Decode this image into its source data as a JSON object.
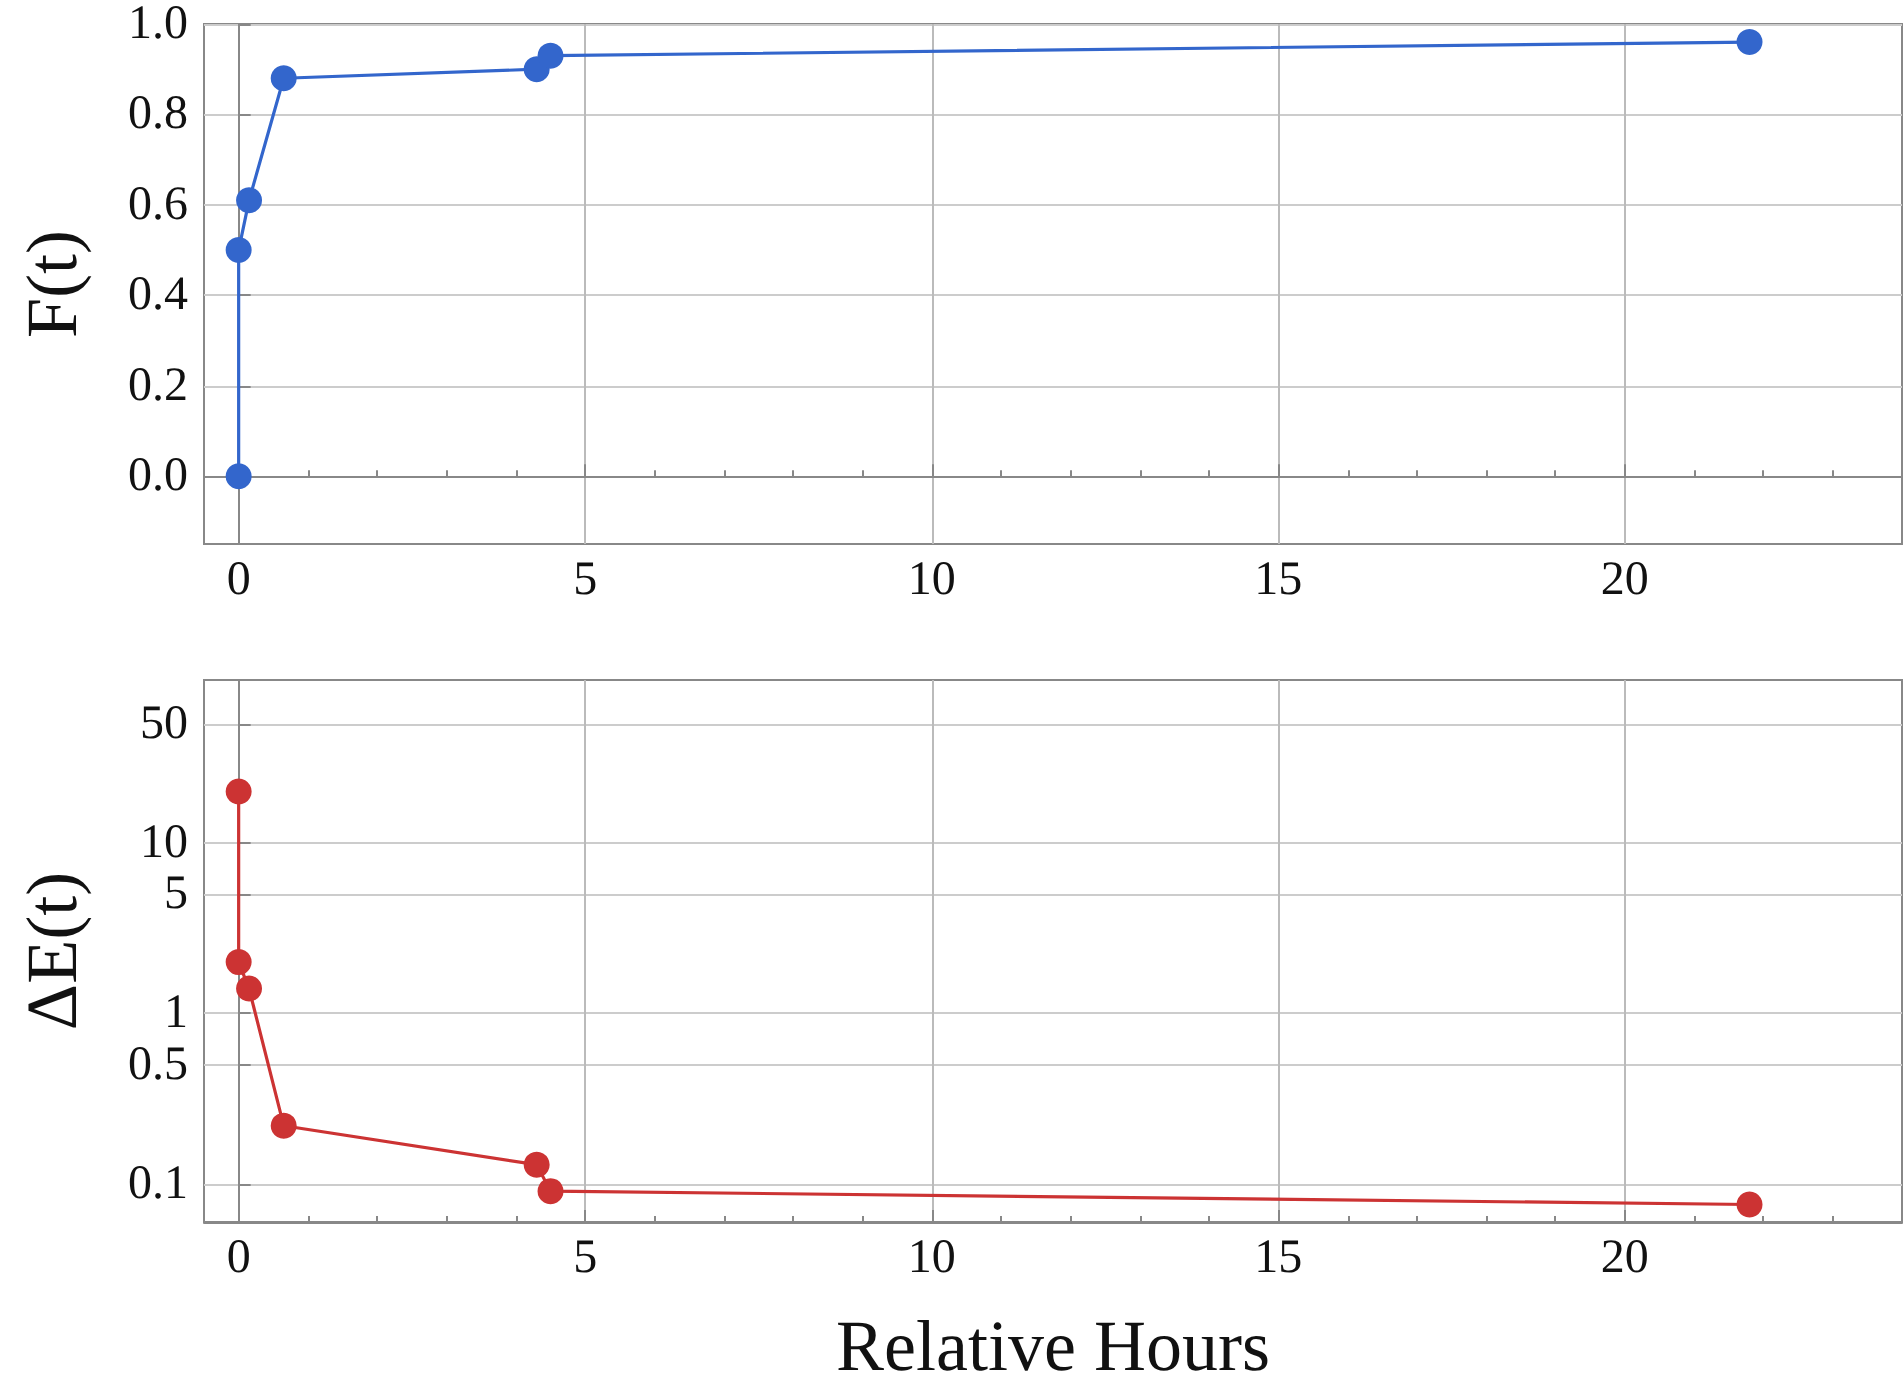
{
  "chart_data": [
    {
      "type": "line",
      "ylabel": "F(t)",
      "x": [
        0,
        0,
        0.15,
        0.65,
        4.3,
        4.5,
        21.8
      ],
      "series": [
        {
          "color": "#3366cc",
          "values": [
            0,
            0.5,
            0.61,
            0.88,
            0.9,
            0.93,
            0.96
          ]
        }
      ],
      "xlim": [
        -0.5,
        24
      ],
      "xticks": [
        0,
        5,
        10,
        15,
        20
      ],
      "ylim": [
        -0.15,
        1.0
      ],
      "yticks": [
        {
          "value": 0,
          "label": "0.0"
        },
        0.2,
        0.4,
        0.6,
        0.8,
        {
          "value": 1,
          "label": "1.0"
        }
      ],
      "grid": true,
      "marker": "circle",
      "line_style": "solid"
    },
    {
      "type": "line",
      "ylabel": "ΔE(t)",
      "xlabel": "Relative Hours",
      "x": [
        0,
        0,
        0.15,
        0.65,
        4.3,
        4.5,
        21.8
      ],
      "series": [
        {
          "color": "#cc3333",
          "values": [
            20,
            2,
            1.4,
            0.22,
            0.13,
            0.091,
            0.076
          ]
        }
      ],
      "xlim": [
        -0.5,
        24
      ],
      "xticks": [
        0,
        5,
        10,
        15,
        20
      ],
      "ylim": [
        0.06,
        90
      ],
      "yticks": [
        0.1,
        0.5,
        1,
        5,
        10,
        50
      ],
      "log": "y",
      "grid": true,
      "marker": "circle",
      "line_style": "solid"
    }
  ]
}
